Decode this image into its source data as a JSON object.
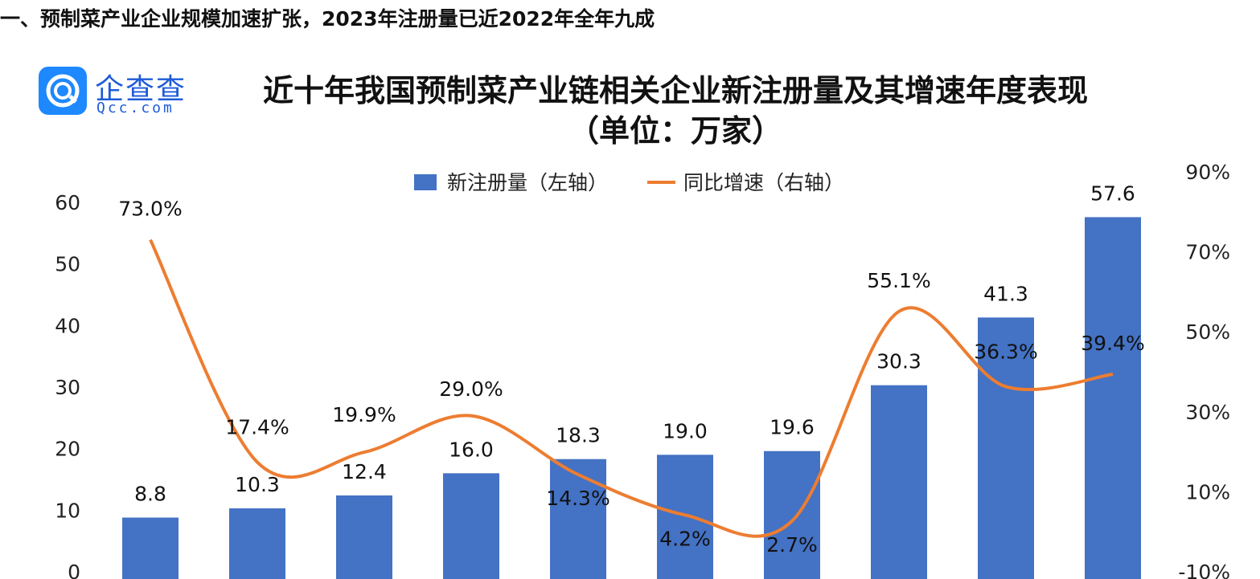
{
  "heading": "一、预制菜产业企业规模加速扩张，2023年注册量已近2022年全年九成",
  "logo": {
    "name": "企查查",
    "sub": "Qcc.com",
    "icon": "qcc-logo-icon",
    "color": "#1e88ff"
  },
  "chart_data": {
    "type": "bar",
    "title": "近十年我国预制菜产业链相关企业新注册量及其增速年度表现",
    "subtitle": "（单位：万家）",
    "legend_position": "top",
    "grid": false,
    "series": [
      {
        "name": "新注册量（左轴）",
        "type": "bar",
        "axis": "left",
        "color": "#4472c4",
        "values": [
          8.8,
          10.3,
          12.4,
          16.0,
          18.3,
          19.0,
          19.6,
          30.3,
          41.3,
          57.6
        ],
        "labels": [
          "8.8",
          "10.3",
          "12.4",
          "16.0",
          "18.3",
          "19.0",
          "19.6",
          "30.3",
          "41.3",
          "57.6"
        ]
      },
      {
        "name": "同比增速（右轴）",
        "type": "line",
        "axis": "right",
        "color": "#ed7d31",
        "values": [
          73.0,
          17.4,
          19.9,
          29.0,
          14.3,
          4.2,
          2.7,
          55.1,
          36.3,
          39.4
        ],
        "labels": [
          "73.0%",
          "17.4%",
          "19.9%",
          "29.0%",
          "14.3%",
          "4.2%",
          "2.7%",
          "55.1%",
          "36.3%",
          "39.4%"
        ]
      }
    ],
    "left_axis": {
      "ylim": [
        0,
        60
      ],
      "ticks": [
        "0",
        "10",
        "20",
        "30",
        "40",
        "50",
        "60"
      ]
    },
    "right_axis": {
      "ylim": [
        -10,
        90
      ],
      "ticks": [
        "-10%",
        "10%",
        "30%",
        "50%",
        "70%",
        "90%"
      ]
    }
  }
}
